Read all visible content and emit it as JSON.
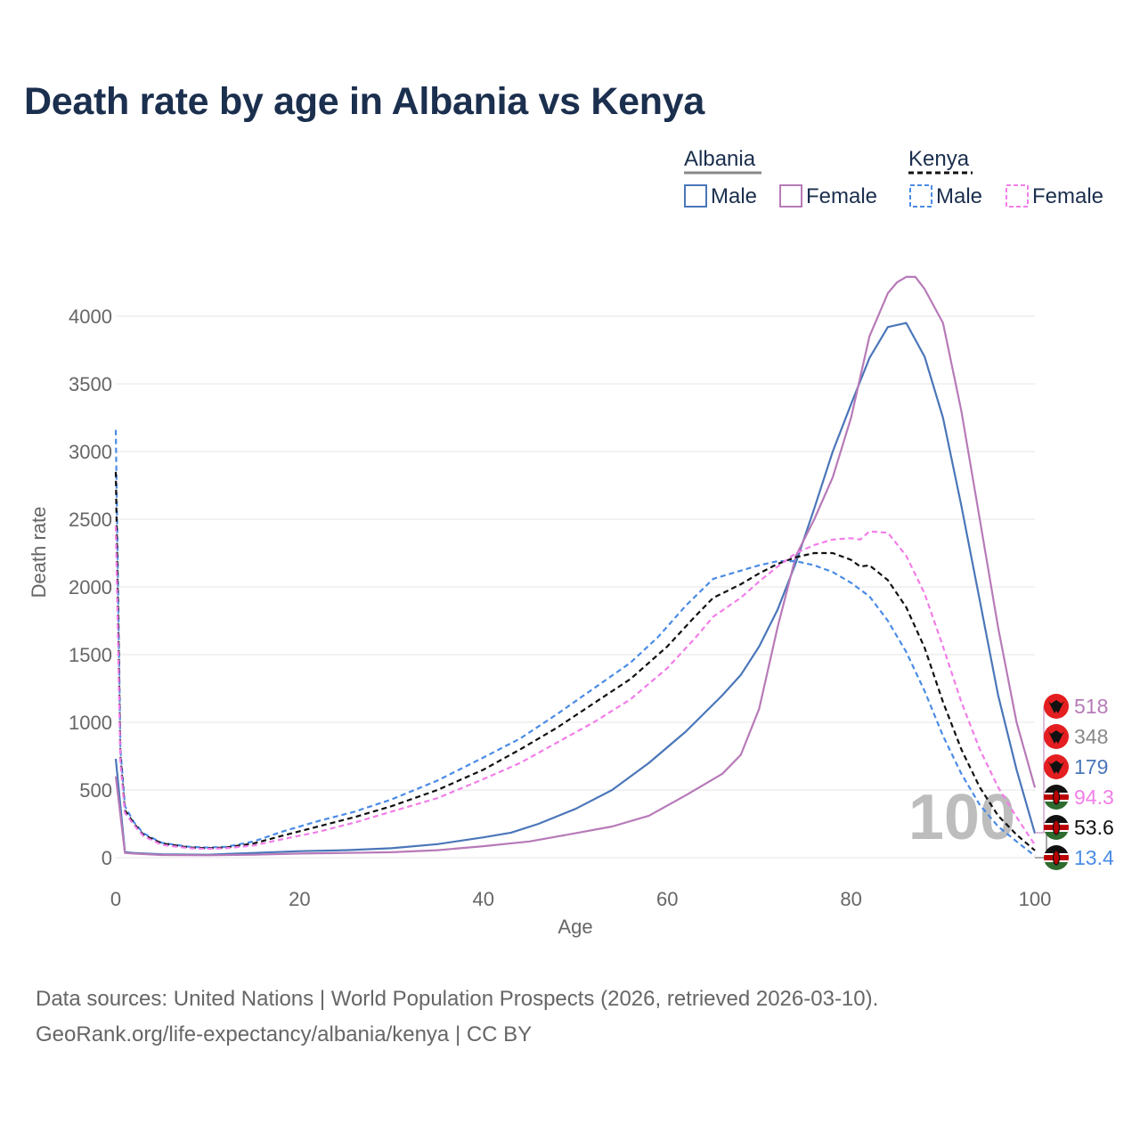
{
  "title": "Death rate by age in Albania vs Kenya",
  "legend": {
    "groups": [
      {
        "name": "Albania",
        "line_color": "#888888",
        "dashed": false
      },
      {
        "name": "Kenya",
        "line_color": "#111111",
        "dashed": true
      }
    ],
    "items": [
      {
        "label": "Male",
        "color": "#4a76b9",
        "dashed": false
      },
      {
        "label": "Female",
        "color": "#b77ab8",
        "dashed": false
      },
      {
        "label": "Male",
        "color": "#4a8be6",
        "dashed": true
      },
      {
        "label": "Female",
        "color": "#f27de8",
        "dashed": true
      }
    ]
  },
  "watermark": "100",
  "chart_data": {
    "type": "line",
    "title": "Death rate by age in Albania vs Kenya",
    "xlabel": "Age",
    "ylabel": "Death rate",
    "xlim": [
      0,
      100
    ],
    "ylim": [
      0,
      4350
    ],
    "xticks": [
      0,
      20,
      40,
      60,
      80,
      100
    ],
    "yticks": [
      0,
      500,
      1000,
      1500,
      2000,
      2500,
      3000,
      3500,
      4000
    ],
    "grid": true,
    "series": [
      {
        "name": "Albania Male",
        "color": "#4a76b9",
        "dashed": false,
        "points": [
          [
            0,
            730
          ],
          [
            1,
            40
          ],
          [
            2,
            35
          ],
          [
            5,
            25
          ],
          [
            10,
            22
          ],
          [
            15,
            35
          ],
          [
            20,
            48
          ],
          [
            25,
            55
          ],
          [
            30,
            70
          ],
          [
            35,
            100
          ],
          [
            40,
            150
          ],
          [
            43,
            185
          ],
          [
            46,
            250
          ],
          [
            50,
            360
          ],
          [
            54,
            500
          ],
          [
            58,
            700
          ],
          [
            62,
            930
          ],
          [
            66,
            1200
          ],
          [
            68,
            1350
          ],
          [
            70,
            1560
          ],
          [
            72,
            1830
          ],
          [
            74,
            2180
          ],
          [
            76,
            2580
          ],
          [
            78,
            3000
          ],
          [
            80,
            3350
          ],
          [
            82,
            3690
          ],
          [
            84,
            3920
          ],
          [
            86,
            3950
          ],
          [
            88,
            3700
          ],
          [
            90,
            3250
          ],
          [
            92,
            2600
          ],
          [
            94,
            1900
          ],
          [
            96,
            1200
          ],
          [
            98,
            650
          ],
          [
            100,
            179
          ]
        ]
      },
      {
        "name": "Albania Female",
        "color": "#b77ab8",
        "dashed": false,
        "points": [
          [
            0,
            600
          ],
          [
            1,
            35
          ],
          [
            2,
            30
          ],
          [
            5,
            20
          ],
          [
            10,
            18
          ],
          [
            15,
            22
          ],
          [
            20,
            30
          ],
          [
            25,
            35
          ],
          [
            30,
            40
          ],
          [
            35,
            55
          ],
          [
            40,
            85
          ],
          [
            45,
            120
          ],
          [
            50,
            180
          ],
          [
            54,
            230
          ],
          [
            58,
            310
          ],
          [
            62,
            460
          ],
          [
            66,
            620
          ],
          [
            68,
            760
          ],
          [
            70,
            1100
          ],
          [
            72,
            1700
          ],
          [
            74,
            2230
          ],
          [
            76,
            2500
          ],
          [
            78,
            2810
          ],
          [
            80,
            3250
          ],
          [
            82,
            3850
          ],
          [
            84,
            4170
          ],
          [
            85,
            4250
          ],
          [
            86,
            4290
          ],
          [
            87,
            4290
          ],
          [
            88,
            4200
          ],
          [
            90,
            3950
          ],
          [
            92,
            3300
          ],
          [
            94,
            2500
          ],
          [
            96,
            1700
          ],
          [
            98,
            1000
          ],
          [
            100,
            518
          ]
        ]
      },
      {
        "name": "Kenya Male",
        "color": "#4a8be6",
        "dashed": true,
        "points": [
          [
            0,
            3160
          ],
          [
            0.5,
            800
          ],
          [
            1,
            380
          ],
          [
            2,
            260
          ],
          [
            3,
            180
          ],
          [
            5,
            110
          ],
          [
            8,
            80
          ],
          [
            10,
            75
          ],
          [
            12,
            80
          ],
          [
            15,
            120
          ],
          [
            18,
            190
          ],
          [
            22,
            270
          ],
          [
            26,
            340
          ],
          [
            30,
            430
          ],
          [
            35,
            570
          ],
          [
            40,
            740
          ],
          [
            44,
            880
          ],
          [
            48,
            1060
          ],
          [
            52,
            1250
          ],
          [
            56,
            1440
          ],
          [
            59,
            1630
          ],
          [
            62,
            1860
          ],
          [
            65,
            2060
          ],
          [
            67,
            2100
          ],
          [
            69,
            2140
          ],
          [
            70,
            2160
          ],
          [
            72,
            2190
          ],
          [
            74,
            2190
          ],
          [
            76,
            2160
          ],
          [
            78,
            2110
          ],
          [
            80,
            2030
          ],
          [
            82,
            1930
          ],
          [
            84,
            1750
          ],
          [
            86,
            1520
          ],
          [
            88,
            1230
          ],
          [
            90,
            900
          ],
          [
            92,
            620
          ],
          [
            94,
            390
          ],
          [
            96,
            230
          ],
          [
            98,
            120
          ],
          [
            100,
            13.4
          ]
        ]
      },
      {
        "name": "Kenya Both",
        "color": "#111111",
        "dashed": true,
        "points": [
          [
            0,
            2850
          ],
          [
            0.5,
            750
          ],
          [
            1,
            350
          ],
          [
            2,
            250
          ],
          [
            3,
            170
          ],
          [
            5,
            105
          ],
          [
            8,
            75
          ],
          [
            10,
            70
          ],
          [
            12,
            75
          ],
          [
            15,
            105
          ],
          [
            18,
            160
          ],
          [
            22,
            230
          ],
          [
            26,
            300
          ],
          [
            30,
            380
          ],
          [
            35,
            500
          ],
          [
            40,
            650
          ],
          [
            44,
            800
          ],
          [
            48,
            960
          ],
          [
            52,
            1140
          ],
          [
            56,
            1320
          ],
          [
            60,
            1560
          ],
          [
            63,
            1780
          ],
          [
            65,
            1920
          ],
          [
            68,
            2020
          ],
          [
            70,
            2100
          ],
          [
            72,
            2170
          ],
          [
            74,
            2220
          ],
          [
            76,
            2250
          ],
          [
            78,
            2250
          ],
          [
            80,
            2200
          ],
          [
            81,
            2150
          ],
          [
            82,
            2160
          ],
          [
            84,
            2050
          ],
          [
            86,
            1850
          ],
          [
            88,
            1550
          ],
          [
            90,
            1150
          ],
          [
            92,
            800
          ],
          [
            94,
            520
          ],
          [
            96,
            310
          ],
          [
            98,
            170
          ],
          [
            100,
            53.6
          ]
        ]
      },
      {
        "name": "Kenya Female",
        "color": "#f27de8",
        "dashed": true,
        "points": [
          [
            0,
            2450
          ],
          [
            0.5,
            700
          ],
          [
            1,
            330
          ],
          [
            2,
            240
          ],
          [
            3,
            160
          ],
          [
            5,
            95
          ],
          [
            8,
            70
          ],
          [
            10,
            65
          ],
          [
            12,
            70
          ],
          [
            15,
            90
          ],
          [
            18,
            135
          ],
          [
            22,
            190
          ],
          [
            26,
            260
          ],
          [
            30,
            340
          ],
          [
            35,
            440
          ],
          [
            40,
            580
          ],
          [
            44,
            700
          ],
          [
            48,
            850
          ],
          [
            52,
            1000
          ],
          [
            56,
            1170
          ],
          [
            60,
            1400
          ],
          [
            63,
            1620
          ],
          [
            65,
            1780
          ],
          [
            68,
            1920
          ],
          [
            70,
            2040
          ],
          [
            72,
            2150
          ],
          [
            74,
            2250
          ],
          [
            76,
            2310
          ],
          [
            78,
            2350
          ],
          [
            80,
            2360
          ],
          [
            81,
            2350
          ],
          [
            82,
            2410
          ],
          [
            84,
            2400
          ],
          [
            86,
            2230
          ],
          [
            88,
            1950
          ],
          [
            90,
            1560
          ],
          [
            92,
            1150
          ],
          [
            94,
            800
          ],
          [
            96,
            520
          ],
          [
            98,
            300
          ],
          [
            100,
            94.3
          ]
        ]
      }
    ],
    "end_labels": [
      {
        "value": "518",
        "country": "Albania",
        "color": "#b77ab8"
      },
      {
        "value": "348",
        "country": "Albania",
        "color": "#888888"
      },
      {
        "value": "179",
        "country": "Albania",
        "color": "#4a76b9"
      },
      {
        "value": "94.3",
        "country": "Kenya",
        "color": "#f27de8"
      },
      {
        "value": "53.6",
        "country": "Kenya",
        "color": "#111111"
      },
      {
        "value": "13.4",
        "country": "Kenya",
        "color": "#4a8be6"
      }
    ]
  },
  "sources": [
    "Data sources: United Nations | World Population Prospects (2026, retrieved 2026-03-10).",
    "GeoRank.org/life-expectancy/albania/kenya | CC BY"
  ]
}
